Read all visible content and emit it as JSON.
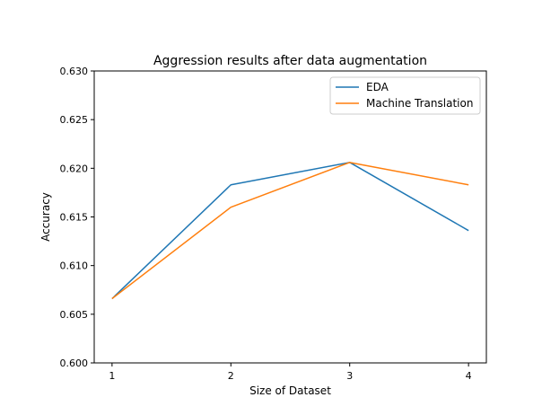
{
  "chart_data": {
    "type": "line",
    "title": "Aggression results after data augmentation",
    "xlabel": "Size of Dataset",
    "ylabel": "Accuracy",
    "x": [
      1,
      2,
      3,
      4
    ],
    "xticks": [
      "1",
      "2",
      "3",
      "4"
    ],
    "yticks": [
      "0.600",
      "0.605",
      "0.610",
      "0.615",
      "0.620",
      "0.625",
      "0.630"
    ],
    "xlim": [
      0.85,
      4.15
    ],
    "ylim": [
      0.6,
      0.63
    ],
    "grid": false,
    "legend_position": "top-right",
    "series": [
      {
        "name": "EDA",
        "color": "#1f77b4",
        "values": [
          0.6066,
          0.6183,
          0.6206,
          0.6136
        ]
      },
      {
        "name": "Machine Translation",
        "color": "#ff7f0e",
        "values": [
          0.6066,
          0.616,
          0.6206,
          0.6183
        ]
      }
    ]
  }
}
